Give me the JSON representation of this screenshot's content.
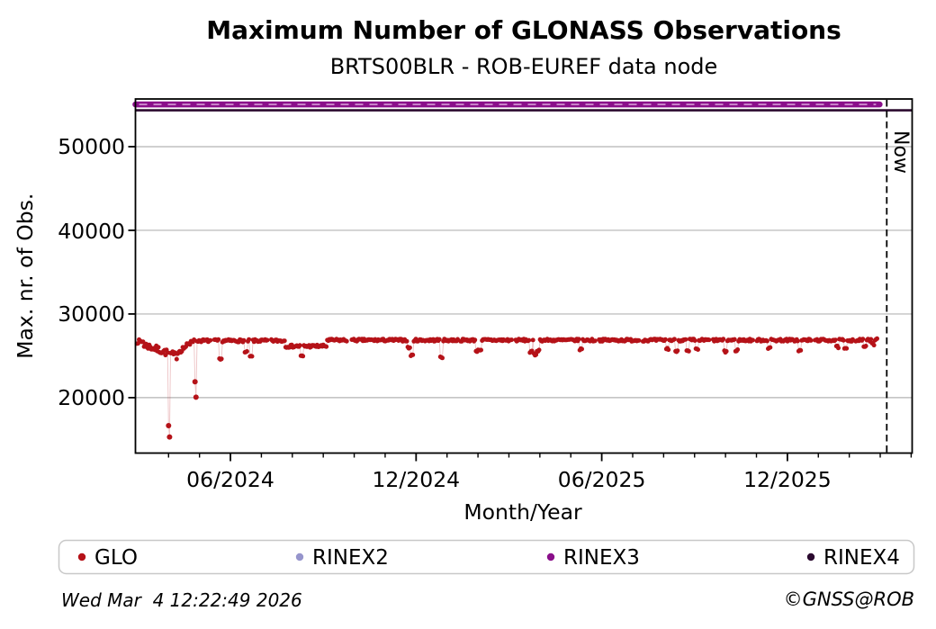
{
  "footer": {
    "timestamp": "Wed Mar  4 12:22:49 2026",
    "credit": "©GNSS@ROB"
  },
  "chart_data": {
    "type": "scatter",
    "title": "Maximum Number of GLONASS Observations",
    "subtitle": "BRTS00BLR - ROB-EUREF data node",
    "xlabel": "Month/Year",
    "ylabel": "Max. nr. of Obs.",
    "x_axis": {
      "unit": "months since plot start (2024-03)",
      "range": [
        0,
        25.1
      ],
      "major_ticks": [
        {
          "m": 3.07,
          "label": "06/2024"
        },
        {
          "m": 9.07,
          "label": "12/2024"
        },
        {
          "m": 15.07,
          "label": "06/2025"
        },
        {
          "m": 21.07,
          "label": "12/2025"
        }
      ],
      "minor_ticks_every_month": true,
      "minor_tick_offset": 0.07
    },
    "y_axis": {
      "range": [
        13350,
        55700
      ],
      "ticks": [
        {
          "value": 50000,
          "label": "50000"
        },
        {
          "value": 40000,
          "label": "40000"
        },
        {
          "value": 30000,
          "label": "30000"
        },
        {
          "value": 20000,
          "label": "20000"
        }
      ],
      "grid": "horizontal",
      "grid_color": "#b3b3b3"
    },
    "now_marker": {
      "m": 24.28,
      "label": "Now",
      "style": "dashed-vertical-black"
    },
    "series": [
      {
        "name": "GLO",
        "color": "#b51218",
        "faint_line_color": "rgba(190,40,45,0.28)",
        "marker": "dot",
        "coverage_months": [
          0.05,
          24.0
        ],
        "segments": [
          {
            "from": 0.05,
            "to": 0.25,
            "level": 26700,
            "noise": 250
          },
          {
            "from": 0.25,
            "to": 1.35,
            "level_start": 26350,
            "level_end": 24950,
            "noise": 400
          },
          {
            "from": 1.35,
            "to": 1.78,
            "level_start": 25400,
            "level_end": 26500,
            "noise": 300
          },
          {
            "from": 1.78,
            "to": 4.84,
            "level": 26800,
            "noise": 160
          },
          {
            "from": 4.84,
            "to": 6.18,
            "level": 26150,
            "noise": 170
          },
          {
            "from": 6.18,
            "to": 24.0,
            "level": 26870,
            "noise": 150
          }
        ],
        "dropouts": [
          {
            "m": 1.06,
            "values": [
              16650,
              15300
            ]
          },
          {
            "m": 1.93,
            "values": [
              21900,
              20050
            ]
          }
        ],
        "dips": [
          [
            2.75,
            24550
          ],
          [
            3.56,
            25400
          ],
          [
            3.74,
            24900
          ],
          [
            5.37,
            24950
          ],
          [
            8.84,
            25950
          ],
          [
            8.92,
            25050
          ],
          [
            9.88,
            24850
          ],
          [
            11.04,
            25600
          ],
          [
            11.14,
            25750
          ],
          [
            12.78,
            25450
          ],
          [
            12.9,
            25150
          ],
          [
            13.02,
            25650
          ],
          [
            14.38,
            25800
          ],
          [
            17.18,
            25850
          ],
          [
            17.5,
            25600
          ],
          [
            17.85,
            25550
          ],
          [
            18.16,
            25750
          ],
          [
            19.07,
            25500
          ],
          [
            19.42,
            25650
          ],
          [
            20.49,
            25950
          ],
          [
            21.48,
            25600
          ],
          [
            22.67,
            26050
          ],
          [
            22.96,
            25800
          ],
          [
            23.58,
            26150
          ],
          [
            23.85,
            26400
          ],
          [
            23.97,
            27050
          ]
        ],
        "gaps": [
          [
            2.42,
            2.52
          ],
          [
            4.28,
            4.36
          ],
          [
            6.86,
            6.96
          ],
          [
            9.3,
            9.36
          ],
          [
            10.42,
            10.5
          ],
          [
            12.18,
            12.26
          ],
          [
            14.88,
            14.96
          ],
          [
            16.3,
            16.38
          ],
          [
            18.56,
            18.64
          ],
          [
            19.98,
            20.06
          ],
          [
            21.86,
            21.96
          ],
          [
            23.18,
            23.26
          ]
        ]
      },
      {
        "name": "RINEX2",
        "color": "#9695cc"
      },
      {
        "name": "RINEX3",
        "color": "#8a0f8a",
        "dash_overlay_color": "#cf8fcf",
        "value": 55050,
        "coverage_months": [
          0.0,
          24.05
        ],
        "style": "thick-constant-line"
      },
      {
        "name": "RINEX4",
        "color": "#2b0a2f",
        "value": 54350,
        "coverage_months": [
          0.0,
          25.1
        ],
        "style": "thin-constant-line"
      }
    ],
    "legend": {
      "position": "bottom",
      "items": [
        {
          "label": "GLO",
          "color": "#b51218"
        },
        {
          "label": "RINEX2",
          "color": "#9695cc"
        },
        {
          "label": "RINEX3",
          "color": "#8a0f8a"
        },
        {
          "label": "RINEX4",
          "color": "#2b0a2f"
        }
      ]
    }
  }
}
